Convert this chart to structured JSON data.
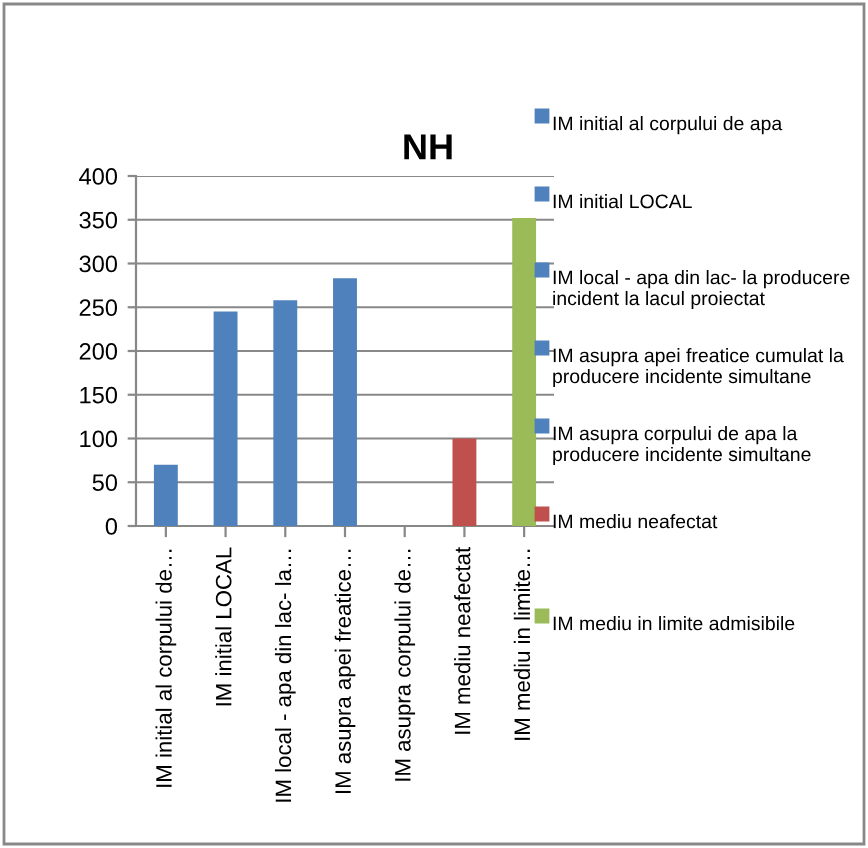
{
  "chart_data": {
    "type": "bar",
    "title": "NH",
    "categories": [
      "IM initial al corpului de…",
      "IM initial LOCAL",
      "IM local - apa din lac- la…",
      "IM asupra apei freatice…",
      "IM asupra corpului de…",
      "IM mediu neafectat",
      "IM mediu in limite…"
    ],
    "series": [
      {
        "name": "IM initial al corpului de apa",
        "color": "#4f81bd",
        "values": [
          70,
          null,
          null,
          null,
          null,
          null,
          null
        ]
      },
      {
        "name": "IM initial LOCAL",
        "color": "#4f81bd",
        "values": [
          null,
          245,
          null,
          null,
          null,
          null,
          null
        ]
      },
      {
        "name": "IM local - apa din lac- la producere incident la lacul proiectat",
        "color": "#4f81bd",
        "values": [
          null,
          null,
          258,
          null,
          null,
          null,
          null
        ]
      },
      {
        "name": "IM asupra apei freatice cumulat la producere incidente simultane",
        "color": "#4f81bd",
        "values": [
          null,
          null,
          null,
          283,
          null,
          null,
          null
        ]
      },
      {
        "name": "IM asupra corpului de apa la producere incidente simultane",
        "color": "#4f81bd",
        "values": [
          null,
          null,
          null,
          null,
          0,
          null,
          null
        ]
      },
      {
        "name": "IM mediu neafectat",
        "color": "#c0504d",
        "values": [
          null,
          null,
          null,
          null,
          null,
          100,
          null
        ]
      },
      {
        "name": "IM mediu in limite admisibile",
        "color": "#9bbb59",
        "values": [
          null,
          null,
          null,
          null,
          null,
          null,
          352
        ]
      }
    ],
    "ylim": [
      0,
      400
    ],
    "yticks": [
      0,
      50,
      100,
      150,
      200,
      250,
      300,
      350,
      400
    ],
    "grid": "y",
    "legend": "right"
  }
}
